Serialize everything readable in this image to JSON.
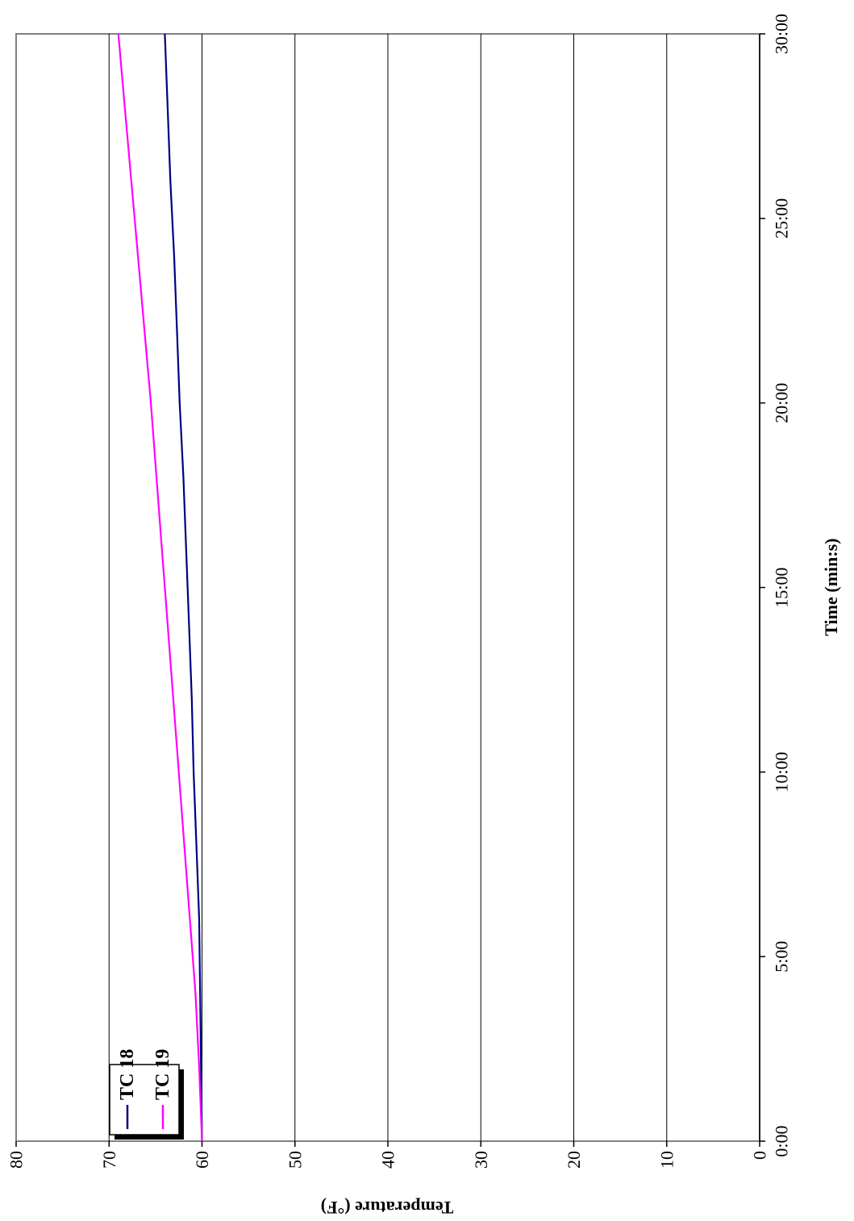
{
  "chart_data": {
    "type": "line",
    "xlabel": "Time (min:s)",
    "ylabel": "Temperature (°F)",
    "xlim": [
      0,
      30
    ],
    "ylim": [
      0,
      80
    ],
    "x_ticks": [
      {
        "value": 0,
        "label": "0:00"
      },
      {
        "value": 5,
        "label": "5:00"
      },
      {
        "value": 10,
        "label": "10:00"
      },
      {
        "value": 15,
        "label": "15:00"
      },
      {
        "value": 20,
        "label": "20:00"
      },
      {
        "value": 25,
        "label": "25:00"
      },
      {
        "value": 30,
        "label": "30:00"
      }
    ],
    "y_ticks": [
      {
        "value": 0,
        "label": "0"
      },
      {
        "value": 10,
        "label": "10"
      },
      {
        "value": 20,
        "label": "20"
      },
      {
        "value": 30,
        "label": "30"
      },
      {
        "value": 40,
        "label": "40"
      },
      {
        "value": 50,
        "label": "50"
      },
      {
        "value": 60,
        "label": "60"
      },
      {
        "value": 70,
        "label": "70"
      },
      {
        "value": 80,
        "label": "80"
      }
    ],
    "grid": "horizontal",
    "legend_position": "top-left",
    "x": [
      0,
      2,
      4,
      6,
      8,
      10,
      12,
      14,
      16,
      18,
      20,
      22,
      24,
      26,
      28,
      30
    ],
    "series": [
      {
        "name": "TC 18",
        "color": "#000080",
        "values": [
          60.0,
          60.1,
          60.2,
          60.3,
          60.6,
          60.9,
          61.1,
          61.4,
          61.7,
          62.0,
          62.4,
          62.7,
          63.0,
          63.4,
          63.7,
          64.0
        ]
      },
      {
        "name": "TC 19",
        "color": "#ff00ff",
        "values": [
          60.0,
          60.3,
          60.7,
          61.3,
          61.9,
          62.5,
          63.1,
          63.7,
          64.3,
          64.9,
          65.5,
          66.2,
          66.9,
          67.6,
          68.3,
          69.0
        ]
      }
    ]
  }
}
